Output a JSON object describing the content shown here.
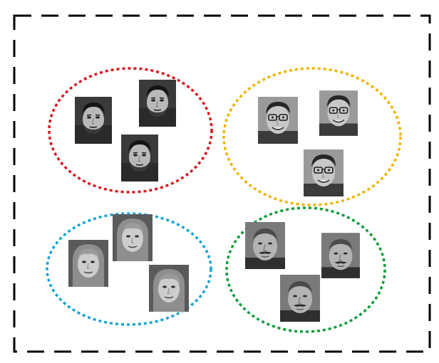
{
  "outer_border": {
    "color": "#000000",
    "style": "dashed"
  },
  "clusters": [
    {
      "id": "cluster-1",
      "color": "#d71920",
      "face_count": 3,
      "person": "person-a",
      "tone": "dark-hair-beard"
    },
    {
      "id": "cluster-2",
      "color": "#f0b400",
      "face_count": 3,
      "person": "person-b",
      "tone": "glasses"
    },
    {
      "id": "cluster-3",
      "color": "#17a3d6",
      "face_count": 3,
      "person": "person-c",
      "tone": "long-hair"
    },
    {
      "id": "cluster-4",
      "color": "#0f9d3a",
      "face_count": 3,
      "person": "person-d",
      "tone": "moustache"
    }
  ],
  "faces": [
    {
      "cluster": "cluster-1",
      "icon": "face-photo-icon"
    },
    {
      "cluster": "cluster-1",
      "icon": "face-photo-icon"
    },
    {
      "cluster": "cluster-1",
      "icon": "face-photo-icon"
    },
    {
      "cluster": "cluster-2",
      "icon": "face-photo-icon"
    },
    {
      "cluster": "cluster-2",
      "icon": "face-photo-icon"
    },
    {
      "cluster": "cluster-2",
      "icon": "face-photo-icon"
    },
    {
      "cluster": "cluster-3",
      "icon": "face-photo-icon"
    },
    {
      "cluster": "cluster-3",
      "icon": "face-photo-icon"
    },
    {
      "cluster": "cluster-3",
      "icon": "face-photo-icon"
    },
    {
      "cluster": "cluster-4",
      "icon": "face-photo-icon"
    },
    {
      "cluster": "cluster-4",
      "icon": "face-photo-icon"
    },
    {
      "cluster": "cluster-4",
      "icon": "face-photo-icon"
    }
  ]
}
